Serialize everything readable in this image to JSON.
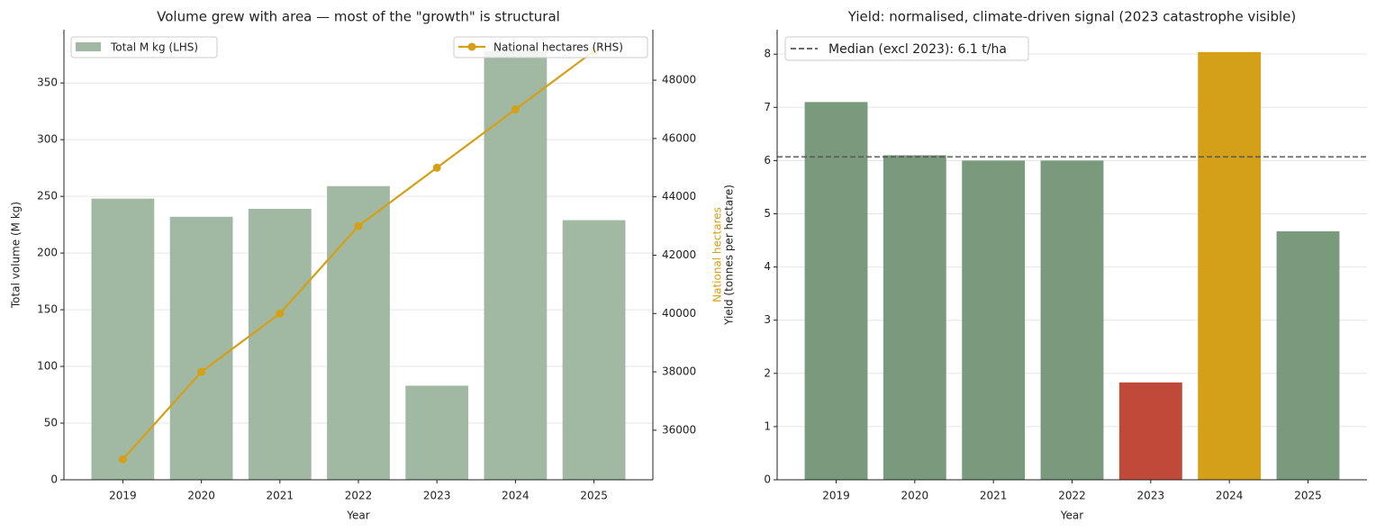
{
  "chart_data": [
    {
      "type": "bar_line",
      "title": "Volume grew with area — most of the \"growth\" is structural",
      "x_label": "Year",
      "y_label": "Total volume (M kg)",
      "y2_label": "National hectares",
      "y2_label_color": "#d4a017",
      "categories": [
        "2019",
        "2020",
        "2021",
        "2022",
        "2023",
        "2024",
        "2025"
      ],
      "series": [
        {
          "name": "Total M kg (LHS)",
          "color": "#a1b8a2",
          "values": [
            248,
            232,
            239,
            259,
            83,
            378,
            229
          ]
        },
        {
          "name": "National hectares (RHS)",
          "color": "#d4a017",
          "axis": "y2",
          "values": [
            35000,
            38000,
            40000,
            43000,
            45000,
            47000,
            49000
          ]
        }
      ],
      "ylim": [
        0,
        397
      ],
      "yticks": [
        0,
        50,
        100,
        150,
        200,
        250,
        300,
        350
      ],
      "y2lim": [
        34300,
        49730
      ],
      "y2ticks": [
        36000,
        38000,
        40000,
        42000,
        44000,
        46000,
        48000
      ],
      "grid": true,
      "legend": "upper left",
      "legend2": "upper right"
    },
    {
      "type": "bar",
      "title": "Yield: normalised, climate-driven signal (2023 catastrophe visible)",
      "x_label": "Year",
      "y_label": "Yield (tonnes per hectare)",
      "categories": [
        "2019",
        "2020",
        "2021",
        "2022",
        "2023",
        "2024",
        "2025"
      ],
      "values": [
        7.1,
        6.1,
        6.0,
        6.0,
        1.83,
        8.04,
        4.67
      ],
      "colors": [
        "#7a9a7e",
        "#7a9a7e",
        "#7a9a7e",
        "#7a9a7e",
        "#c0493a",
        "#d4a017",
        "#7a9a7e"
      ],
      "reference_line": {
        "value": 6.07,
        "label": "Median (excl 2023): 6.1 t/ha",
        "color": "#555555"
      },
      "ylim": [
        0,
        8.46
      ],
      "yticks": [
        0,
        1,
        2,
        3,
        4,
        5,
        6,
        7,
        8
      ],
      "grid": true,
      "legend": "upper left"
    }
  ]
}
